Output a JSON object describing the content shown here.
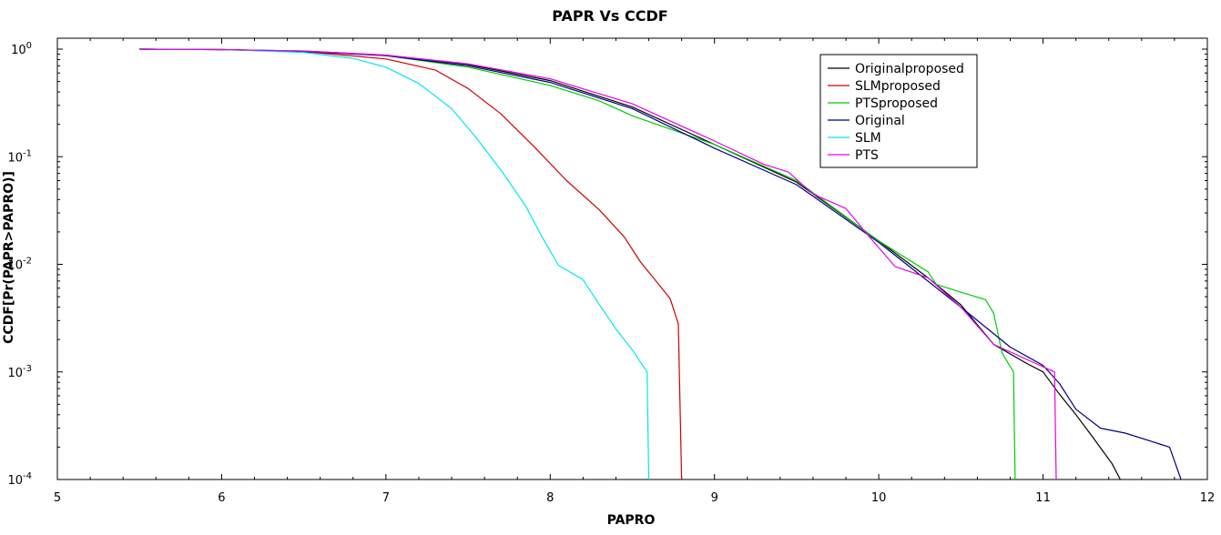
{
  "chart_data": {
    "type": "line",
    "title": "PAPR Vs CCDF",
    "xlabel": "PAPRO",
    "ylabel": "CCDF[Pr(PAPR>PAPRO)]",
    "xlim": [
      5,
      12
    ],
    "ylim": [
      0.0001,
      1
    ],
    "yscale": "log",
    "x_ticks": [
      5,
      6,
      7,
      8,
      9,
      10,
      11,
      12
    ],
    "x_tick_labels": [
      "5",
      "6",
      "7",
      "8",
      "9",
      "10",
      "11",
      "12"
    ],
    "y_ticks": [
      1,
      0.1,
      0.01,
      0.001,
      0.0001
    ],
    "y_tick_labels": [
      {
        "base": "10",
        "exp": "0"
      },
      {
        "base": "10",
        "exp": "-1"
      },
      {
        "base": "10",
        "exp": "-2"
      },
      {
        "base": "10",
        "exp": "-3"
      },
      {
        "base": "10",
        "exp": "-4"
      }
    ],
    "grid": false,
    "legend_position": "top-right",
    "series": [
      {
        "name": "Originalproposed",
        "color": "#000000",
        "points": [
          [
            5.5,
            1
          ],
          [
            6,
            0.99
          ],
          [
            6.5,
            0.96
          ],
          [
            7,
            0.88
          ],
          [
            7.5,
            0.72
          ],
          [
            8,
            0.51
          ],
          [
            8.5,
            0.29
          ],
          [
            9,
            0.13
          ],
          [
            9.5,
            0.058
          ],
          [
            10,
            0.0165
          ],
          [
            10.3,
            0.0075
          ],
          [
            10.5,
            0.0042
          ],
          [
            10.7,
            0.0018
          ],
          [
            10.9,
            0.0012
          ],
          [
            11,
            0.001
          ],
          [
            11.1,
            0.00062
          ],
          [
            11.2,
            0.0004
          ],
          [
            11.3,
            0.00025
          ],
          [
            11.42,
            0.00014
          ],
          [
            11.47,
            0.0001
          ]
        ]
      },
      {
        "name": "SLMproposed",
        "color": "#cc0000",
        "points": [
          [
            5.5,
            1
          ],
          [
            6,
            0.99
          ],
          [
            6.5,
            0.95
          ],
          [
            7,
            0.81
          ],
          [
            7.3,
            0.64
          ],
          [
            7.5,
            0.43
          ],
          [
            7.7,
            0.25
          ],
          [
            7.9,
            0.125
          ],
          [
            8.1,
            0.06
          ],
          [
            8.3,
            0.032
          ],
          [
            8.45,
            0.018
          ],
          [
            8.55,
            0.0105
          ],
          [
            8.65,
            0.0068
          ],
          [
            8.73,
            0.0048
          ],
          [
            8.78,
            0.0028
          ],
          [
            8.8,
            0.0001
          ]
        ]
      },
      {
        "name": "PTSproposed",
        "color": "#00cc00",
        "points": [
          [
            5.5,
            1
          ],
          [
            6,
            0.99
          ],
          [
            6.5,
            0.96
          ],
          [
            7,
            0.87
          ],
          [
            7.5,
            0.68
          ],
          [
            8,
            0.46
          ],
          [
            8.3,
            0.33
          ],
          [
            8.5,
            0.24
          ],
          [
            9,
            0.13
          ],
          [
            9.5,
            0.06
          ],
          [
            10,
            0.0165
          ],
          [
            10.3,
            0.0085
          ],
          [
            10.35,
            0.0065
          ],
          [
            10.5,
            0.0055
          ],
          [
            10.65,
            0.0047
          ],
          [
            10.7,
            0.0035
          ],
          [
            10.75,
            0.0015
          ],
          [
            10.82,
            0.001
          ],
          [
            10.83,
            0.0001
          ]
        ]
      },
      {
        "name": "Original",
        "color": "#000080",
        "points": [
          [
            5.5,
            1
          ],
          [
            6,
            0.99
          ],
          [
            6.5,
            0.95
          ],
          [
            7,
            0.87
          ],
          [
            7.5,
            0.7
          ],
          [
            8,
            0.49
          ],
          [
            8.5,
            0.28
          ],
          [
            9,
            0.12
          ],
          [
            9.5,
            0.055
          ],
          [
            10,
            0.016
          ],
          [
            10.5,
            0.004
          ],
          [
            10.8,
            0.0017
          ],
          [
            11,
            0.00115
          ],
          [
            11.1,
            0.00078
          ],
          [
            11.2,
            0.00045
          ],
          [
            11.35,
            0.0003
          ],
          [
            11.5,
            0.00027
          ],
          [
            11.77,
            0.0002
          ],
          [
            11.84,
            0.0001
          ]
        ]
      },
      {
        "name": "SLM",
        "color": "#00e5ee",
        "points": [
          [
            5.5,
            1
          ],
          [
            6,
            0.99
          ],
          [
            6.5,
            0.93
          ],
          [
            6.8,
            0.82
          ],
          [
            7,
            0.68
          ],
          [
            7.2,
            0.48
          ],
          [
            7.4,
            0.28
          ],
          [
            7.55,
            0.15
          ],
          [
            7.7,
            0.075
          ],
          [
            7.85,
            0.035
          ],
          [
            7.95,
            0.018
          ],
          [
            8.05,
            0.0098
          ],
          [
            8.2,
            0.0072
          ],
          [
            8.3,
            0.0042
          ],
          [
            8.4,
            0.0025
          ],
          [
            8.5,
            0.0016
          ],
          [
            8.59,
            0.001
          ],
          [
            8.6,
            0.0001
          ]
        ]
      },
      {
        "name": "PTS",
        "color": "#e600e6",
        "points": [
          [
            5.5,
            1
          ],
          [
            6,
            0.99
          ],
          [
            6.5,
            0.96
          ],
          [
            7,
            0.88
          ],
          [
            7.5,
            0.73
          ],
          [
            8,
            0.53
          ],
          [
            8.5,
            0.31
          ],
          [
            9,
            0.14
          ],
          [
            9.3,
            0.085
          ],
          [
            9.45,
            0.072
          ],
          [
            9.6,
            0.045
          ],
          [
            9.8,
            0.033
          ],
          [
            9.95,
            0.0175
          ],
          [
            10.1,
            0.0095
          ],
          [
            10.3,
            0.0075
          ],
          [
            10.5,
            0.004
          ],
          [
            10.7,
            0.0018
          ],
          [
            11.07,
            0.001
          ],
          [
            11.08,
            0.0001
          ]
        ]
      }
    ]
  }
}
